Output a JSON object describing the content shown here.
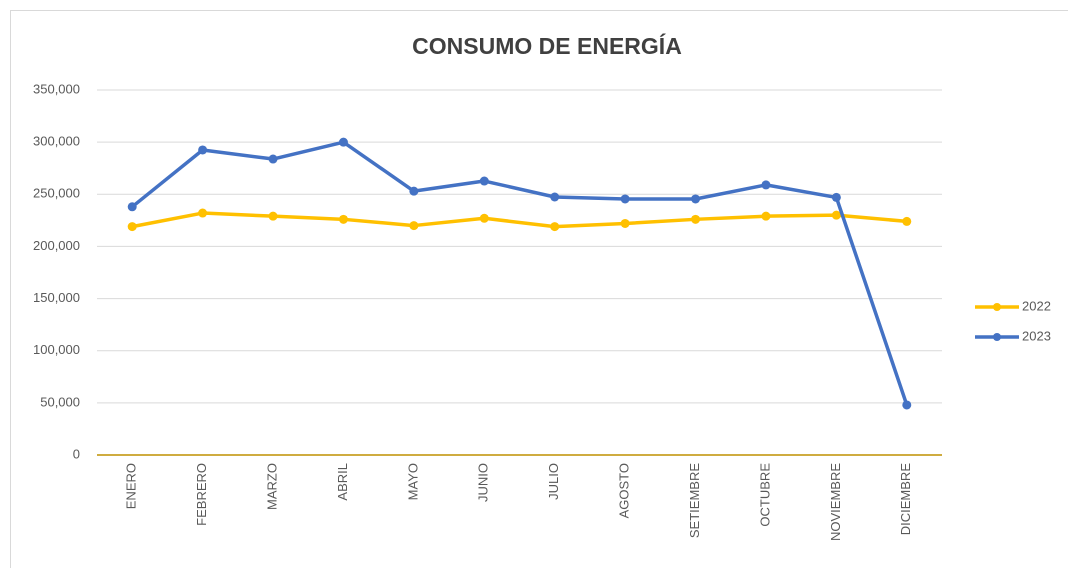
{
  "chart_data": {
    "type": "line",
    "title": "CONSUMO DE ENERGÍA",
    "categories": [
      "ENERO",
      "FEBRERO",
      "MARZO",
      "ABRIL",
      "MAYO",
      "JUNIO",
      "JULIO",
      "AGOSTO",
      "SETIEMBRE",
      "OCTUBRE",
      "NOVIEMBRE",
      "DICIEMBRE"
    ],
    "series": [
      {
        "name": "2022",
        "color": "#ffc000",
        "values": [
          219000,
          232000,
          229000,
          226000,
          220000,
          227000,
          219000,
          222000,
          226000,
          229000,
          230000,
          224000
        ]
      },
      {
        "name": "2023",
        "color": "#4472c4",
        "values": [
          238000,
          292500,
          283800,
          300000,
          253000,
          262700,
          247400,
          245500,
          245500,
          259000,
          247000,
          48000
        ]
      }
    ],
    "ylim": [
      0,
      350000
    ],
    "yticks": [
      0,
      {
        "value": 50000,
        "label": "50,000"
      },
      {
        "value": 100000,
        "label": "100,000"
      },
      {
        "value": 150000,
        "label": "150,000"
      },
      {
        "value": 200000,
        "label": "200,000"
      },
      {
        "value": 250000,
        "label": "250,000"
      },
      {
        "value": 300000,
        "label": "300,000"
      },
      {
        "value": 350000,
        "label": "350,000"
      }
    ],
    "grid": true,
    "legend": "right"
  }
}
